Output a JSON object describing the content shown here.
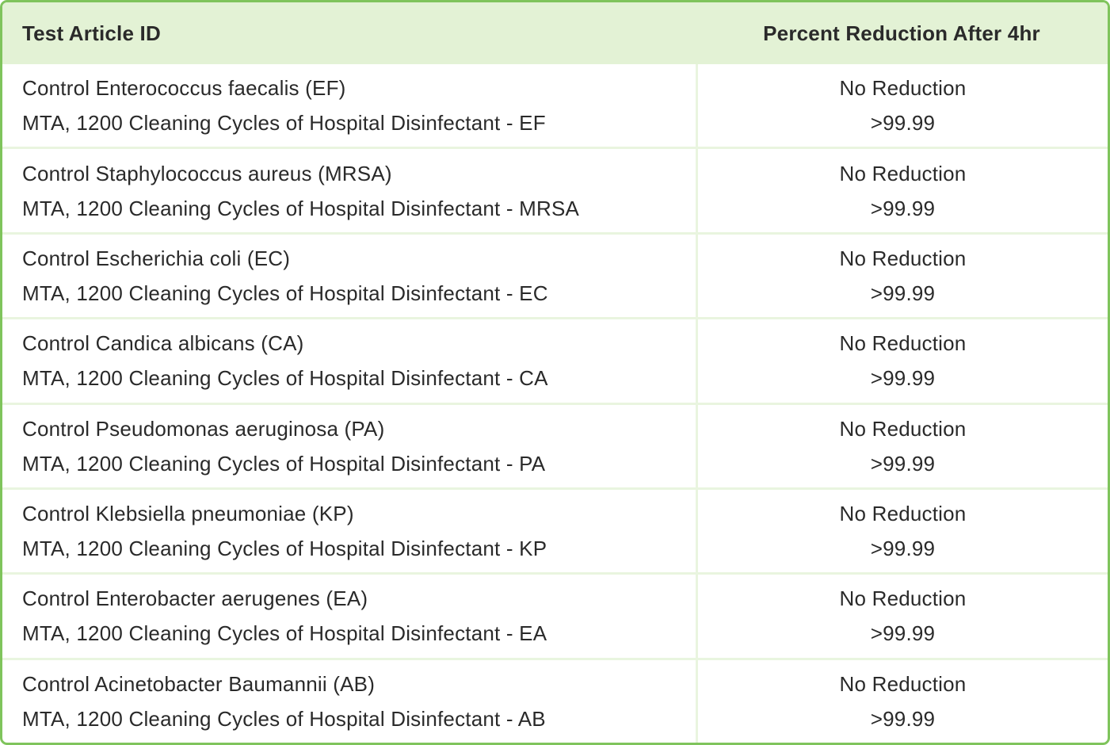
{
  "colors": {
    "border_green": "#7fc45c",
    "header_bg": "#e3f2d5",
    "divider": "#e9f5df",
    "text": "#2a2a2a"
  },
  "table": {
    "columns": [
      {
        "label": "Test Article ID"
      },
      {
        "label": "Percent Reduction After 4hr"
      }
    ],
    "rows": [
      {
        "article_line1": "Control Enterococcus faecalis (EF)",
        "article_line2": "MTA, 1200 Cleaning Cycles of Hospital Disinfectant - EF",
        "result_line1": "No Reduction",
        "result_line2": ">99.99"
      },
      {
        "article_line1": "Control Staphylococcus aureus (MRSA)",
        "article_line2": "MTA, 1200 Cleaning Cycles of Hospital Disinfectant - MRSA",
        "result_line1": "No Reduction",
        "result_line2": ">99.99"
      },
      {
        "article_line1": "Control Escherichia coli (EC)",
        "article_line2": "MTA, 1200 Cleaning Cycles of Hospital Disinfectant - EC",
        "result_line1": "No Reduction",
        "result_line2": ">99.99"
      },
      {
        "article_line1": "Control Candica albicans (CA)",
        "article_line2": "MTA, 1200 Cleaning Cycles of Hospital Disinfectant - CA",
        "result_line1": "No Reduction",
        "result_line2": ">99.99"
      },
      {
        "article_line1": "Control Pseudomonas aeruginosa (PA)",
        "article_line2": "MTA, 1200 Cleaning Cycles of Hospital Disinfectant - PA",
        "result_line1": "No Reduction",
        "result_line2": ">99.99"
      },
      {
        "article_line1": "Control Klebsiella pneumoniae (KP)",
        "article_line2": "MTA, 1200 Cleaning Cycles of Hospital Disinfectant - KP",
        "result_line1": "No Reduction",
        "result_line2": ">99.99"
      },
      {
        "article_line1": "Control Enterobacter aerugenes (EA)",
        "article_line2": "MTA, 1200 Cleaning Cycles of Hospital Disinfectant - EA",
        "result_line1": "No Reduction",
        "result_line2": ">99.99"
      },
      {
        "article_line1": "Control Acinetobacter Baumannii (AB)",
        "article_line2": "MTA, 1200 Cleaning Cycles of Hospital Disinfectant - AB",
        "result_line1": "No Reduction",
        "result_line2": ">99.99"
      }
    ]
  }
}
